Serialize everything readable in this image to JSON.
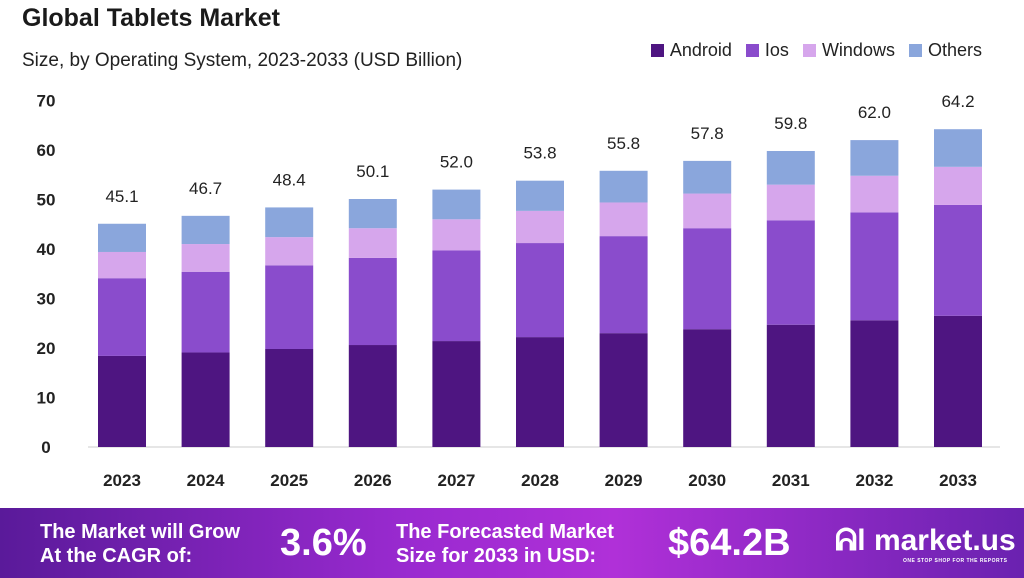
{
  "chart_data": {
    "type": "bar",
    "stacked": true,
    "title": "Global Tablets Market",
    "subtitle": "Size, by Operating System, 2023-2033 (USD Billion)",
    "categories": [
      "2023",
      "2024",
      "2025",
      "2026",
      "2027",
      "2028",
      "2029",
      "2030",
      "2031",
      "2032",
      "2033"
    ],
    "totals": [
      "45.1",
      "46.7",
      "48.4",
      "50.1",
      "52.0",
      "53.8",
      "55.8",
      "57.8",
      "59.8",
      "62.0",
      "64.2"
    ],
    "series": [
      {
        "name": "Android",
        "color": "#4e1581",
        "values": [
          18.4,
          19.1,
          19.8,
          20.6,
          21.4,
          22.2,
          23.0,
          23.8,
          24.7,
          25.6,
          26.5
        ]
      },
      {
        "name": "Ios",
        "color": "#8a4ccc",
        "values": [
          15.7,
          16.3,
          16.9,
          17.6,
          18.3,
          19.0,
          19.6,
          20.4,
          21.1,
          21.8,
          22.4
        ]
      },
      {
        "name": "Windows",
        "color": "#d6a6ec",
        "values": [
          5.3,
          5.6,
          5.7,
          6.0,
          6.3,
          6.5,
          6.8,
          7.0,
          7.2,
          7.4,
          7.7
        ]
      },
      {
        "name": "Others",
        "color": "#8aa6dc",
        "values": [
          5.7,
          5.7,
          6.0,
          5.9,
          6.0,
          6.1,
          6.4,
          6.6,
          6.8,
          7.2,
          7.6
        ]
      }
    ],
    "ylim": [
      0,
      70
    ],
    "yticks": [
      "0",
      "10",
      "20",
      "30",
      "40",
      "50",
      "60",
      "70"
    ],
    "grid": false,
    "legend": "top-right"
  },
  "footer": {
    "cagr_label_1": "The Market will Grow",
    "cagr_label_2": "At the CAGR of:",
    "cagr_value": "3.6%",
    "forecast_label_1": "The Forecasted Market",
    "forecast_label_2": "Size for 2033 in USD:",
    "forecast_value": "$64.2B",
    "logo": "market.us",
    "tagline": "ONE STOP SHOP FOR THE REPORTS"
  }
}
